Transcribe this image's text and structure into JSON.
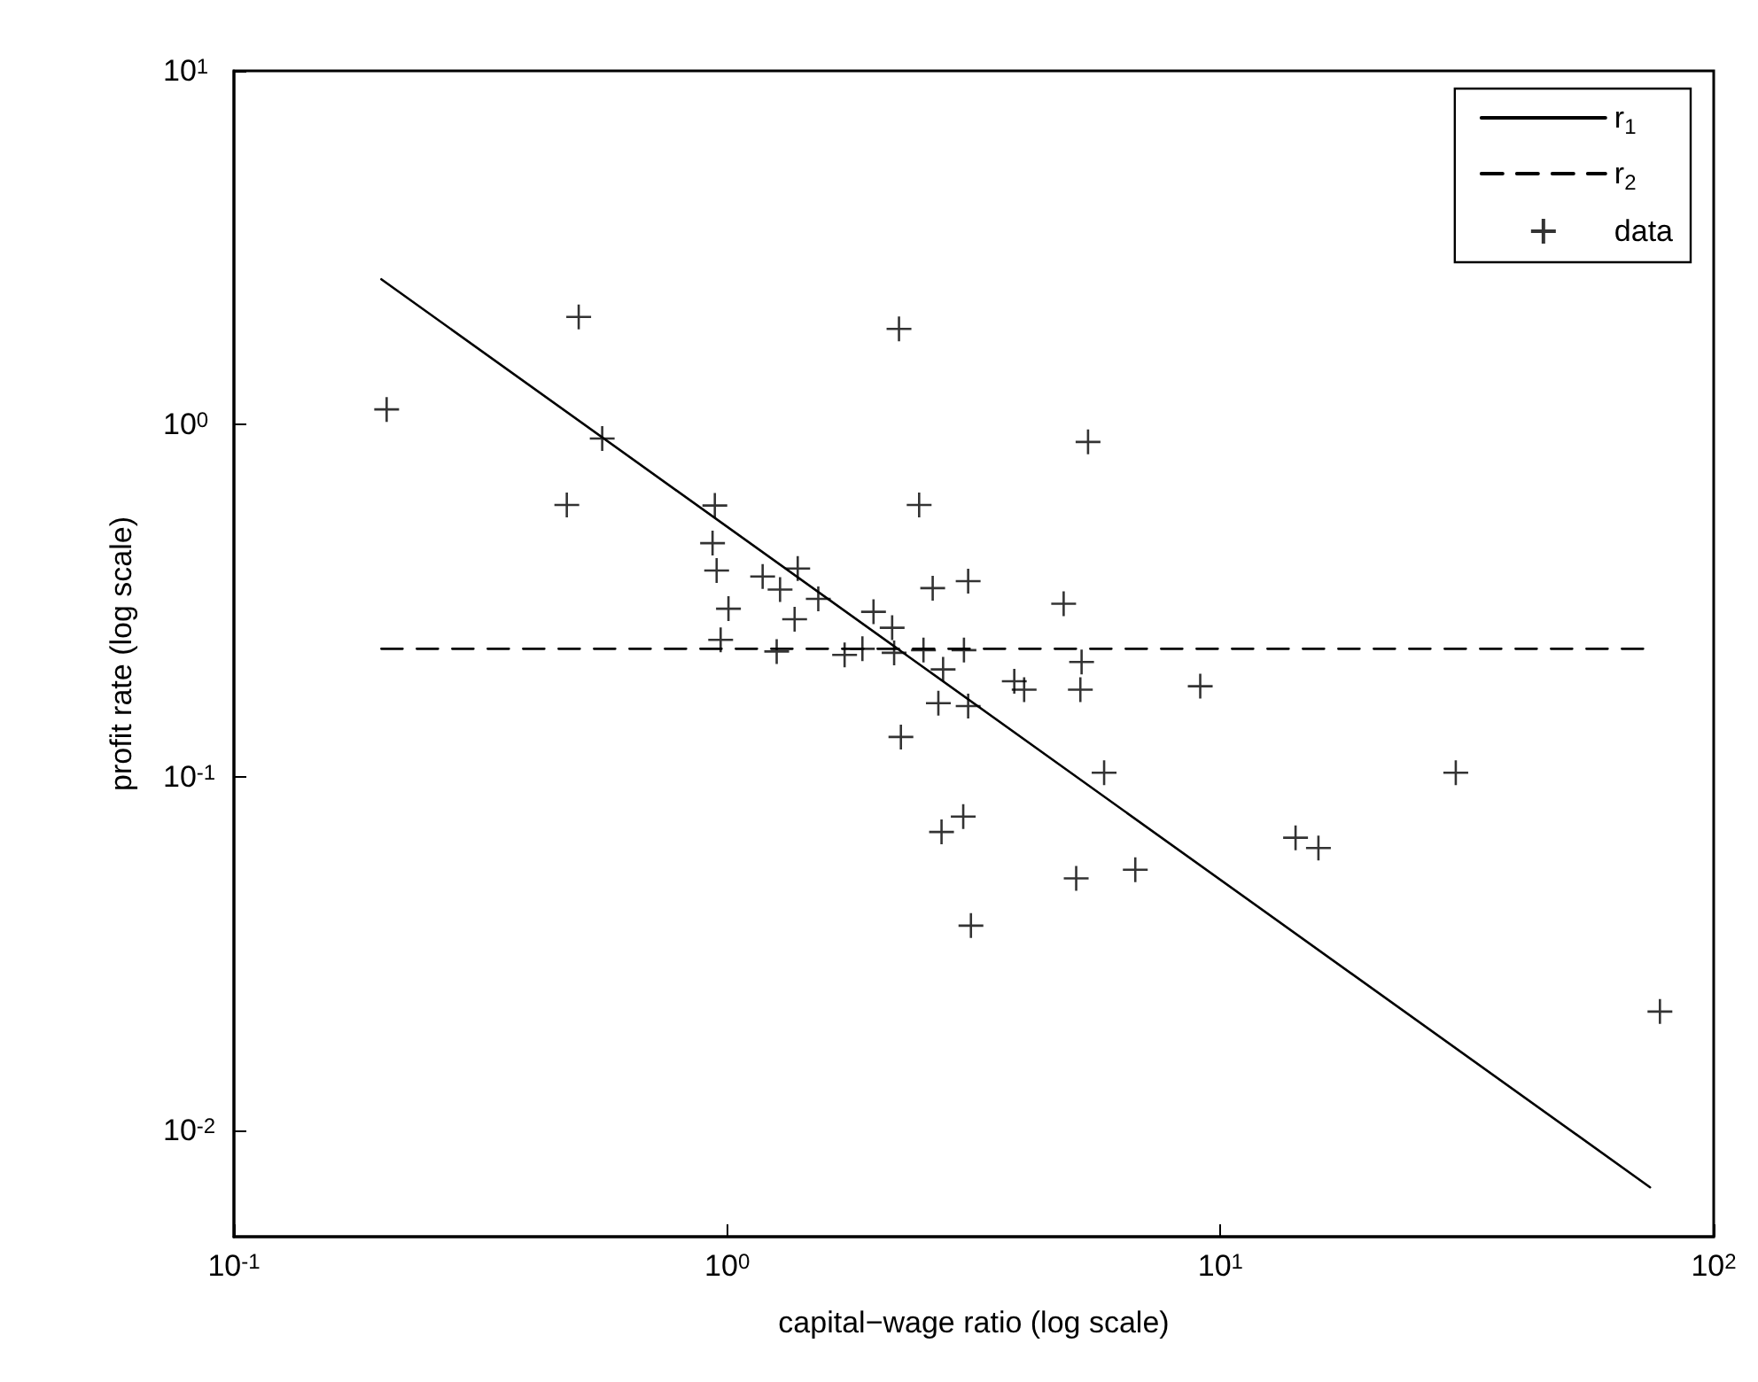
{
  "chart_data": {
    "type": "scatter",
    "xlabel": "capital−wage ratio (log scale)",
    "ylabel": "profit rate (log scale)",
    "log": "xy",
    "grid": false,
    "legend": "top right",
    "xlim": [
      0.1,
      100
    ],
    "ylim": [
      0.005,
      10
    ],
    "xticks": [
      {
        "value": 0.1,
        "label": "10$^{-1}$"
      },
      {
        "value": 1,
        "label": "10$^{0}$"
      },
      {
        "value": 10,
        "label": "10$^{1}$"
      },
      {
        "value": 100,
        "label": "10$^{2}$"
      }
    ],
    "yticks": [
      {
        "value": 0.01,
        "label": "10$^{-2}$"
      },
      {
        "value": 0.1,
        "label": "10$^{-1}$"
      },
      {
        "value": 1,
        "label": "10$^{0}$"
      },
      {
        "value": 10,
        "label": "10$^{1}$"
      }
    ],
    "series": [
      {
        "name": "r$_{1}$",
        "type": "line",
        "color": "#000000",
        "line_style": "solid",
        "marker": "none",
        "x": [
          0.199,
          74.3
        ],
        "values": [
          2.57,
          0.0069
        ]
      },
      {
        "name": "r$_{2}$",
        "type": "line",
        "color": "#000000",
        "line_style": "dashed",
        "marker": "none",
        "x": [
          0.199,
          74.3
        ],
        "values": [
          0.231,
          0.231
        ]
      },
      {
        "name": "data",
        "color": "#000000",
        "marker": "cross",
        "x": [
          0.204,
          0.5,
          0.558,
          0.473,
          0.944,
          0.934,
          0.952,
          1.006,
          0.97,
          1.18,
          1.28,
          1.39,
          1.53,
          1.37,
          1.26,
          1.73,
          1.88,
          1.98,
          2.16,
          2.18,
          2.5,
          2.61,
          3.08,
          2.74,
          3.02,
          2.68,
          3.08,
          2.25,
          2.23,
          5.39,
          2.45,
          4.81,
          3.82,
          4.0,
          5.23,
          5.2,
          9.1,
          5.81,
          3.01,
          2.72,
          5.1,
          6.72,
          3.12,
          30.0,
          14.2,
          15.8,
          77.8
        ],
        "values": [
          1.1,
          2.01,
          0.91,
          0.59,
          0.588,
          0.46,
          0.385,
          0.3,
          0.245,
          0.37,
          0.34,
          0.39,
          0.32,
          0.28,
          0.227,
          0.222,
          0.231,
          0.294,
          0.265,
          0.225,
          0.229,
          0.343,
          0.359,
          0.202,
          0.229,
          0.162,
          0.159,
          0.13,
          1.86,
          0.89,
          0.59,
          0.31,
          0.187,
          0.177,
          0.212,
          0.177,
          0.181,
          0.103,
          0.0774,
          0.07,
          0.0517,
          0.0547,
          0.038,
          0.103,
          0.0674,
          0.063,
          0.0217
        ]
      }
    ]
  }
}
